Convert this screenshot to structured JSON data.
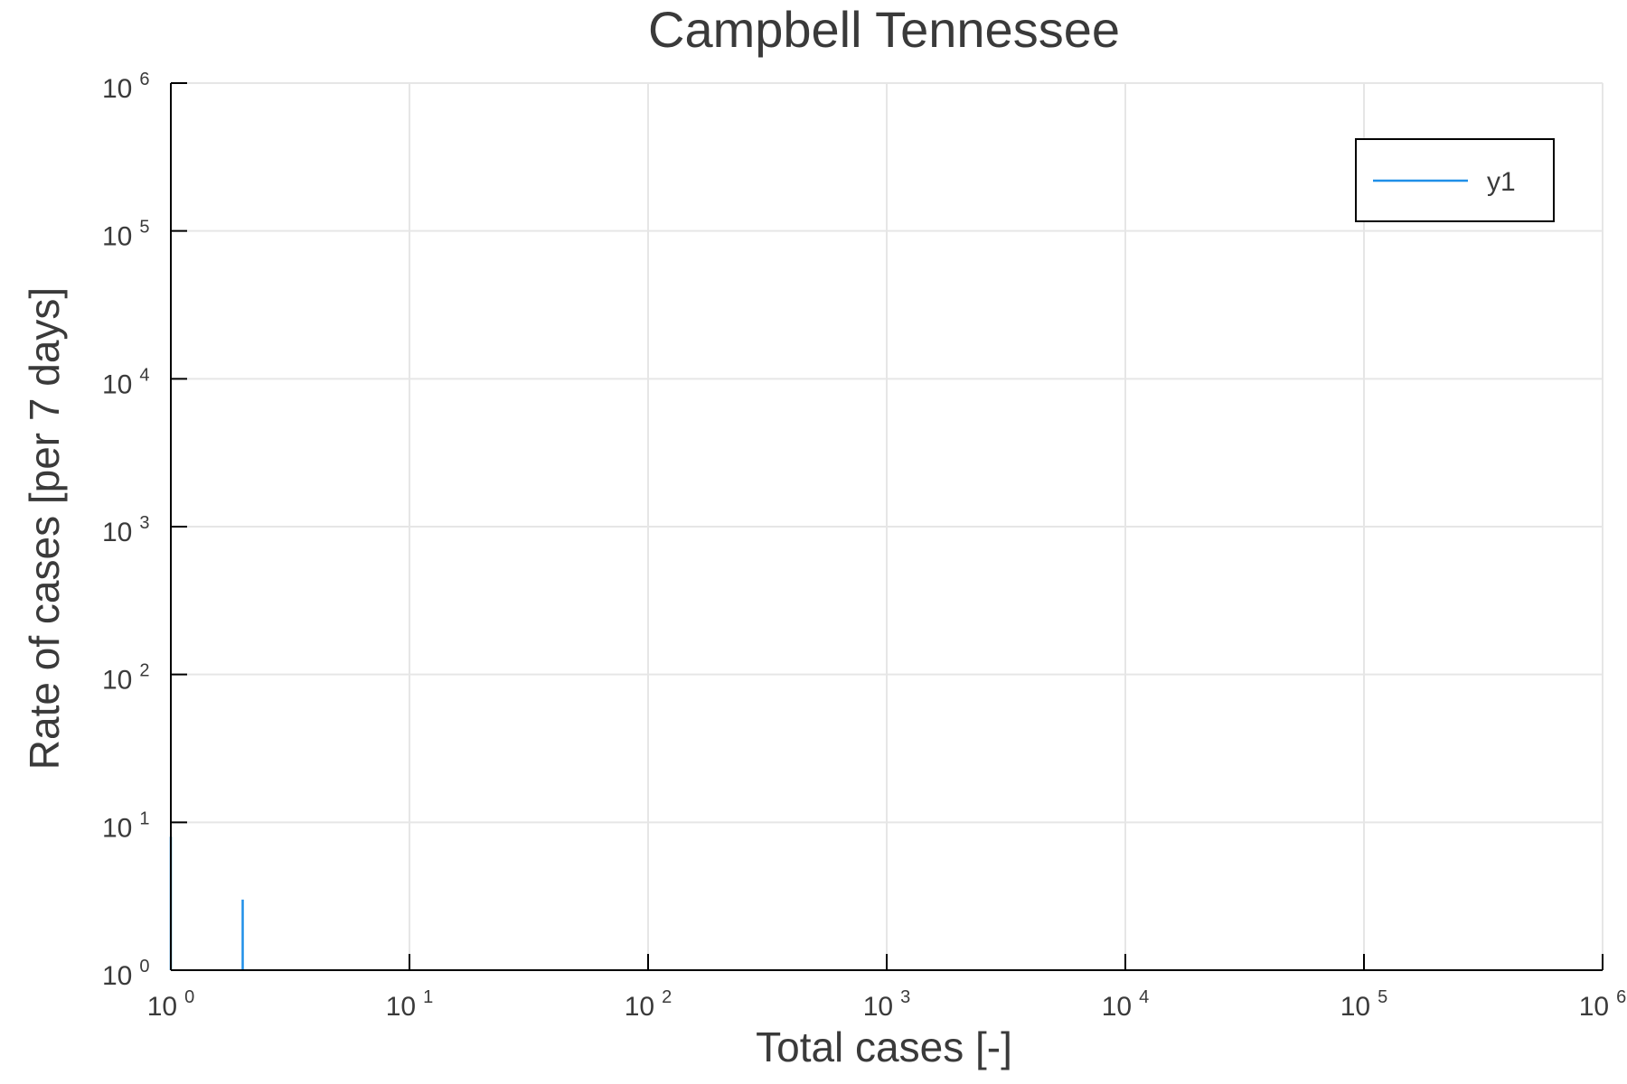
{
  "chart_data": {
    "type": "line",
    "title": "Campbell Tennessee",
    "xlabel": "Total cases [-]",
    "ylabel": "Rate of cases [per 7 days]",
    "xscale": "log",
    "yscale": "log",
    "xlim": [
      1,
      1000000
    ],
    "ylim": [
      1,
      1000000
    ],
    "grid": true,
    "legend_position": "top-right",
    "x_ticks": [
      {
        "base": "10",
        "exp": "0",
        "value": 1
      },
      {
        "base": "10",
        "exp": "1",
        "value": 10
      },
      {
        "base": "10",
        "exp": "2",
        "value": 100
      },
      {
        "base": "10",
        "exp": "3",
        "value": 1000
      },
      {
        "base": "10",
        "exp": "4",
        "value": 10000
      },
      {
        "base": "10",
        "exp": "5",
        "value": 100000
      },
      {
        "base": "10",
        "exp": "6",
        "value": 1000000
      }
    ],
    "y_ticks": [
      {
        "base": "10",
        "exp": "0",
        "value": 1
      },
      {
        "base": "10",
        "exp": "1",
        "value": 10
      },
      {
        "base": "10",
        "exp": "2",
        "value": 100
      },
      {
        "base": "10",
        "exp": "3",
        "value": 1000
      },
      {
        "base": "10",
        "exp": "4",
        "value": 10000
      },
      {
        "base": "10",
        "exp": "5",
        "value": 100000
      },
      {
        "base": "10",
        "exp": "6",
        "value": 1000000
      }
    ],
    "series": [
      {
        "name": "y1",
        "color": "#1f8fe8",
        "segments": [
          [
            [
              1,
              1
            ],
            [
              1,
              8
            ]
          ],
          [
            [
              2,
              1
            ],
            [
              2,
              3
            ]
          ]
        ]
      }
    ]
  }
}
